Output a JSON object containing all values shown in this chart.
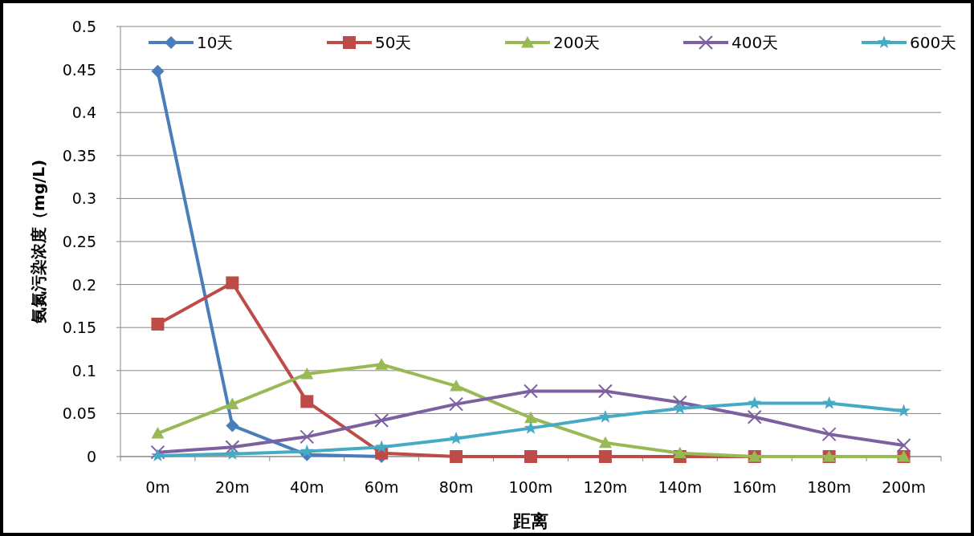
{
  "chart_data": {
    "type": "line",
    "xlabel": "距离",
    "ylabel": "氨氮污染浓度（mg/L)",
    "categories": [
      "0m",
      "20m",
      "40m",
      "60m",
      "80m",
      "100m",
      "120m",
      "140m",
      "160m",
      "180m",
      "200m"
    ],
    "series": [
      {
        "name": "10天",
        "color": "#4a7ebb",
        "marker": "diamond",
        "values": [
          0.448,
          0.036,
          0.002,
          0,
          null,
          null,
          null,
          null,
          null,
          null,
          null
        ]
      },
      {
        "name": "50天",
        "color": "#be4b48",
        "marker": "square",
        "values": [
          0.154,
          0.202,
          0.064,
          0.004,
          0,
          0,
          0,
          0,
          0,
          0,
          0
        ]
      },
      {
        "name": "200天",
        "color": "#98b954",
        "marker": "triangle",
        "values": [
          0.027,
          0.061,
          0.096,
          0.107,
          0.082,
          0.045,
          0.016,
          0.004,
          0,
          0,
          0
        ]
      },
      {
        "name": "400天",
        "color": "#7d60a0",
        "marker": "cross",
        "values": [
          0.005,
          0.011,
          0.023,
          0.042,
          0.061,
          0.076,
          0.076,
          0.063,
          0.046,
          0.026,
          0.013
        ]
      },
      {
        "name": "600天",
        "color": "#46aac5",
        "marker": "star",
        "values": [
          0.001,
          0.003,
          0.006,
          0.011,
          0.021,
          0.033,
          0.046,
          0.056,
          0.062,
          0.062,
          0.053
        ]
      }
    ],
    "ylim": [
      0,
      0.5
    ],
    "yticks": [
      0,
      0.05,
      0.1,
      0.15,
      0.2,
      0.25,
      0.3,
      0.35,
      0.4,
      0.45,
      0.5
    ],
    "grid": "y",
    "legend": "top",
    "line_style": "solid"
  }
}
